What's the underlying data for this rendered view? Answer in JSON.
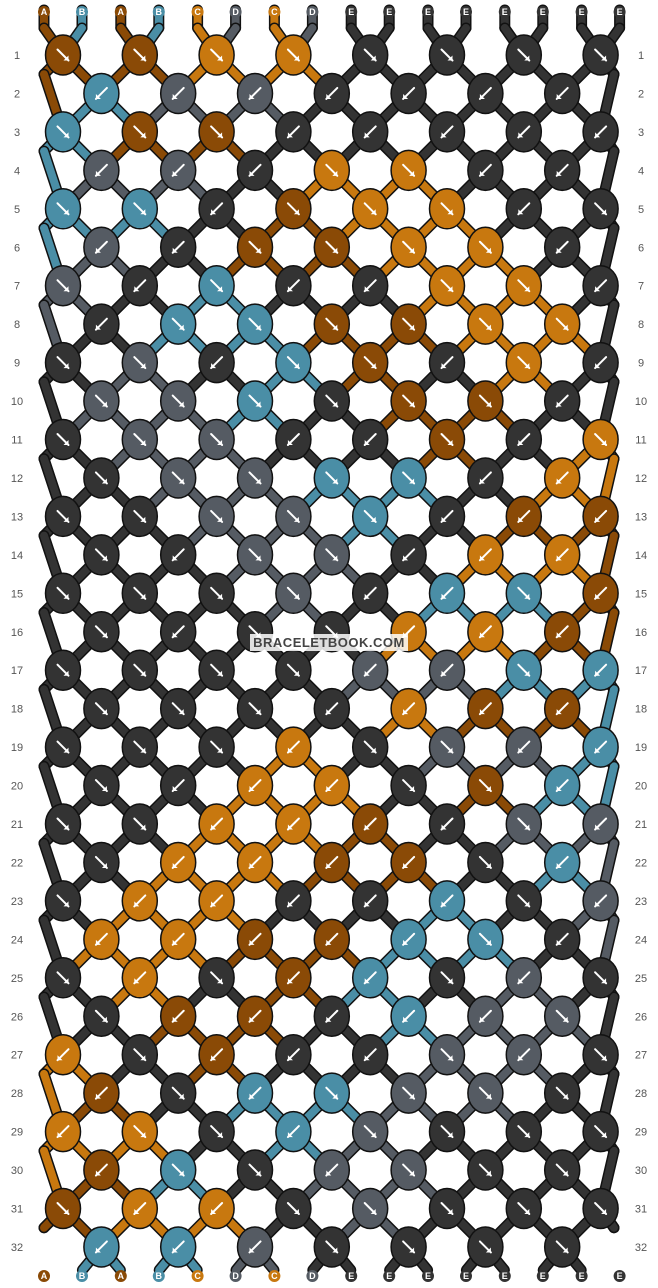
{
  "watermark": "BRACELETBOOK.COM",
  "strand_labels": [
    "A",
    "B",
    "A",
    "B",
    "C",
    "D",
    "C",
    "D",
    "E",
    "E",
    "E",
    "E",
    "E",
    "E",
    "E",
    "E"
  ],
  "strand_colors": {
    "A": "#8a4a06",
    "B": "#4a8ea6",
    "C": "#c8780f",
    "D": "#555b63",
    "E": "#333333"
  },
  "row_numbers": [
    1,
    2,
    3,
    4,
    5,
    6,
    7,
    8,
    9,
    10,
    11,
    12,
    13,
    14,
    15,
    16,
    17,
    18,
    19,
    20,
    21,
    22,
    23,
    24,
    25,
    26,
    27,
    28,
    29,
    30,
    31,
    32
  ],
  "knots": [
    [
      "A",
      "A",
      "C",
      "C",
      "E",
      "E",
      "E",
      "E"
    ],
    [
      "B",
      "D",
      "D",
      "E",
      "E",
      "E",
      "E"
    ],
    [
      "B",
      "A",
      "A",
      "E",
      "E",
      "E",
      "E",
      "E"
    ],
    [
      "D",
      "D",
      "E",
      "C",
      "C",
      "E",
      "E"
    ],
    [
      "B",
      "B",
      "E",
      "A",
      "C",
      "C",
      "E",
      "E"
    ],
    [
      "D",
      "E",
      "A",
      "A",
      "C",
      "C",
      "E"
    ],
    [
      "D",
      "E",
      "B",
      "E",
      "E",
      "C",
      "C",
      "E"
    ],
    [
      "E",
      "B",
      "B",
      "A",
      "A",
      "C",
      "C"
    ],
    [
      "E",
      "D",
      "E",
      "B",
      "A",
      "E",
      "C",
      "E"
    ],
    [
      "D",
      "D",
      "B",
      "E",
      "A",
      "A",
      "E"
    ],
    [
      "E",
      "D",
      "D",
      "E",
      "E",
      "A",
      "E",
      "C"
    ],
    [
      "E",
      "D",
      "D",
      "B",
      "B",
      "E",
      "C"
    ],
    [
      "E",
      "E",
      "D",
      "D",
      "B",
      "E",
      "A",
      "A"
    ],
    [
      "E",
      "E",
      "D",
      "D",
      "E",
      "C",
      "C"
    ],
    [
      "E",
      "E",
      "E",
      "D",
      "E",
      "B",
      "B",
      "A"
    ],
    [
      "E",
      "E",
      "E",
      "E",
      "C",
      "C",
      "A"
    ],
    [
      "E",
      "E",
      "E",
      "E",
      "D",
      "D",
      "B",
      "B"
    ],
    [
      "E",
      "E",
      "E",
      "E",
      "C",
      "A",
      "A"
    ],
    [
      "E",
      "E",
      "E",
      "C",
      "E",
      "D",
      "D",
      "B"
    ],
    [
      "E",
      "E",
      "C",
      "C",
      "E",
      "A",
      "B"
    ],
    [
      "E",
      "E",
      "C",
      "C",
      "A",
      "E",
      "D",
      "D"
    ],
    [
      "E",
      "C",
      "C",
      "A",
      "A",
      "E",
      "B"
    ],
    [
      "E",
      "C",
      "C",
      "E",
      "E",
      "B",
      "E",
      "D"
    ],
    [
      "C",
      "C",
      "A",
      "A",
      "B",
      "B",
      "E"
    ],
    [
      "E",
      "C",
      "E",
      "A",
      "B",
      "E",
      "D",
      "E"
    ],
    [
      "E",
      "A",
      "A",
      "E",
      "B",
      "D",
      "D"
    ],
    [
      "C",
      "E",
      "A",
      "E",
      "E",
      "D",
      "D",
      "E"
    ],
    [
      "A",
      "E",
      "B",
      "B",
      "D",
      "D",
      "E"
    ],
    [
      "C",
      "C",
      "E",
      "B",
      "D",
      "E",
      "E",
      "E"
    ],
    [
      "A",
      "B",
      "E",
      "D",
      "D",
      "E",
      "E"
    ],
    [
      "A",
      "C",
      "C",
      "E",
      "D",
      "E",
      "E",
      "E"
    ],
    [
      "B",
      "B",
      "D",
      "E",
      "E",
      "E",
      "E"
    ]
  ],
  "directions": [
    [
      "F",
      "F",
      "F",
      "F",
      "F",
      "F",
      "F",
      "F"
    ],
    [
      "B",
      "B",
      "B",
      "B",
      "B",
      "B",
      "B"
    ],
    [
      "F",
      "F",
      "F",
      "B",
      "B",
      "B",
      "B",
      "B"
    ],
    [
      "B",
      "B",
      "B",
      "F",
      "F",
      "B",
      "B"
    ],
    [
      "F",
      "F",
      "B",
      "F",
      "F",
      "F",
      "B",
      "F"
    ],
    [
      "B",
      "B",
      "F",
      "F",
      "F",
      "F",
      "B"
    ],
    [
      "F",
      "B",
      "F",
      "B",
      "B",
      "F",
      "F",
      "B"
    ],
    [
      "B",
      "F",
      "F",
      "F",
      "F",
      "F",
      "F"
    ],
    [
      "F",
      "F",
      "B",
      "F",
      "F",
      "B",
      "F",
      "B"
    ],
    [
      "F",
      "F",
      "F",
      "F",
      "F",
      "F",
      "B"
    ],
    [
      "F",
      "F",
      "F",
      "B",
      "B",
      "F",
      "B",
      "F"
    ],
    [
      "F",
      "F",
      "F",
      "F",
      "F",
      "B",
      "B"
    ],
    [
      "F",
      "F",
      "F",
      "F",
      "F",
      "B",
      "B",
      "B"
    ],
    [
      "F",
      "B",
      "F",
      "F",
      "B",
      "B",
      "B"
    ],
    [
      "F",
      "F",
      "F",
      "F",
      "B",
      "B",
      "F",
      "B"
    ],
    [
      "F",
      "B",
      "F",
      "F",
      "B",
      "B",
      "B"
    ],
    [
      "F",
      "F",
      "F",
      "F",
      "B",
      "B",
      "F",
      "B"
    ],
    [
      "F",
      "F",
      "F",
      "B",
      "B",
      "B",
      "B"
    ],
    [
      "F",
      "F",
      "F",
      "B",
      "F",
      "F",
      "B",
      "B"
    ],
    [
      "F",
      "B",
      "B",
      "B",
      "F",
      "F",
      "B"
    ],
    [
      "F",
      "F",
      "B",
      "B",
      "B",
      "B",
      "F",
      "B"
    ],
    [
      "F",
      "B",
      "B",
      "B",
      "B",
      "F",
      "B"
    ],
    [
      "F",
      "B",
      "B",
      "B",
      "B",
      "B",
      "F",
      "B"
    ],
    [
      "B",
      "B",
      "B",
      "B",
      "B",
      "F",
      "B"
    ],
    [
      "F",
      "B",
      "F",
      "B",
      "B",
      "F",
      "B",
      "F"
    ],
    [
      "F",
      "B",
      "B",
      "B",
      "B",
      "B",
      "F"
    ],
    [
      "B",
      "F",
      "B",
      "B",
      "B",
      "F",
      "B",
      "F"
    ],
    [
      "B",
      "F",
      "B",
      "F",
      "F",
      "F",
      "F"
    ],
    [
      "B",
      "F",
      "F",
      "B",
      "F",
      "F",
      "F",
      "F"
    ],
    [
      "B",
      "F",
      "F",
      "B",
      "F",
      "F",
      "F"
    ],
    [
      "F",
      "B",
      "B",
      "F",
      "F",
      "F",
      "F",
      "F"
    ],
    [
      "B",
      "B",
      "B",
      "F",
      "F",
      "F",
      "F"
    ]
  ]
}
